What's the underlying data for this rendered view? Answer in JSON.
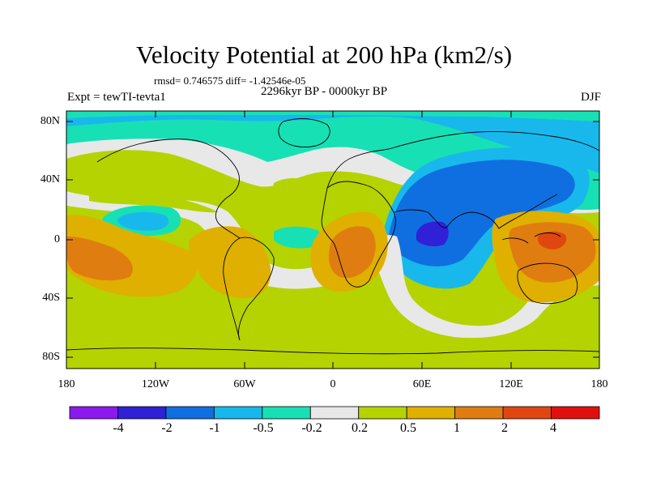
{
  "title": "Velocity Potential at 200 hPa (km2/s)",
  "stats_line": "rmsd= 0.746575 diff= -1.42546e-05",
  "left_label": "Expt = tewTI-tevta1",
  "center_label": "2296kyr BP - 0000kyr BP",
  "right_label": "DJF",
  "map": {
    "lat_ticks": [
      "80N",
      "40N",
      "0",
      "40S",
      "80S"
    ],
    "lon_ticks": [
      "180",
      "120W",
      "60W",
      "0",
      "60E",
      "120E",
      "180"
    ],
    "ocean_fill": "#b5d300"
  },
  "colorbar": {
    "colors": [
      "#8c1aef",
      "#3020d6",
      "#0f6fe0",
      "#18b8ec",
      "#18e0b5",
      "#e8e8e8",
      "#b5d300",
      "#dfb000",
      "#e07d10",
      "#e04710",
      "#e0100f"
    ],
    "labels": [
      "-4",
      "-2",
      "-1",
      "-0.5",
      "-0.2",
      "0.2",
      "0.5",
      "1",
      "2",
      "4"
    ]
  }
}
